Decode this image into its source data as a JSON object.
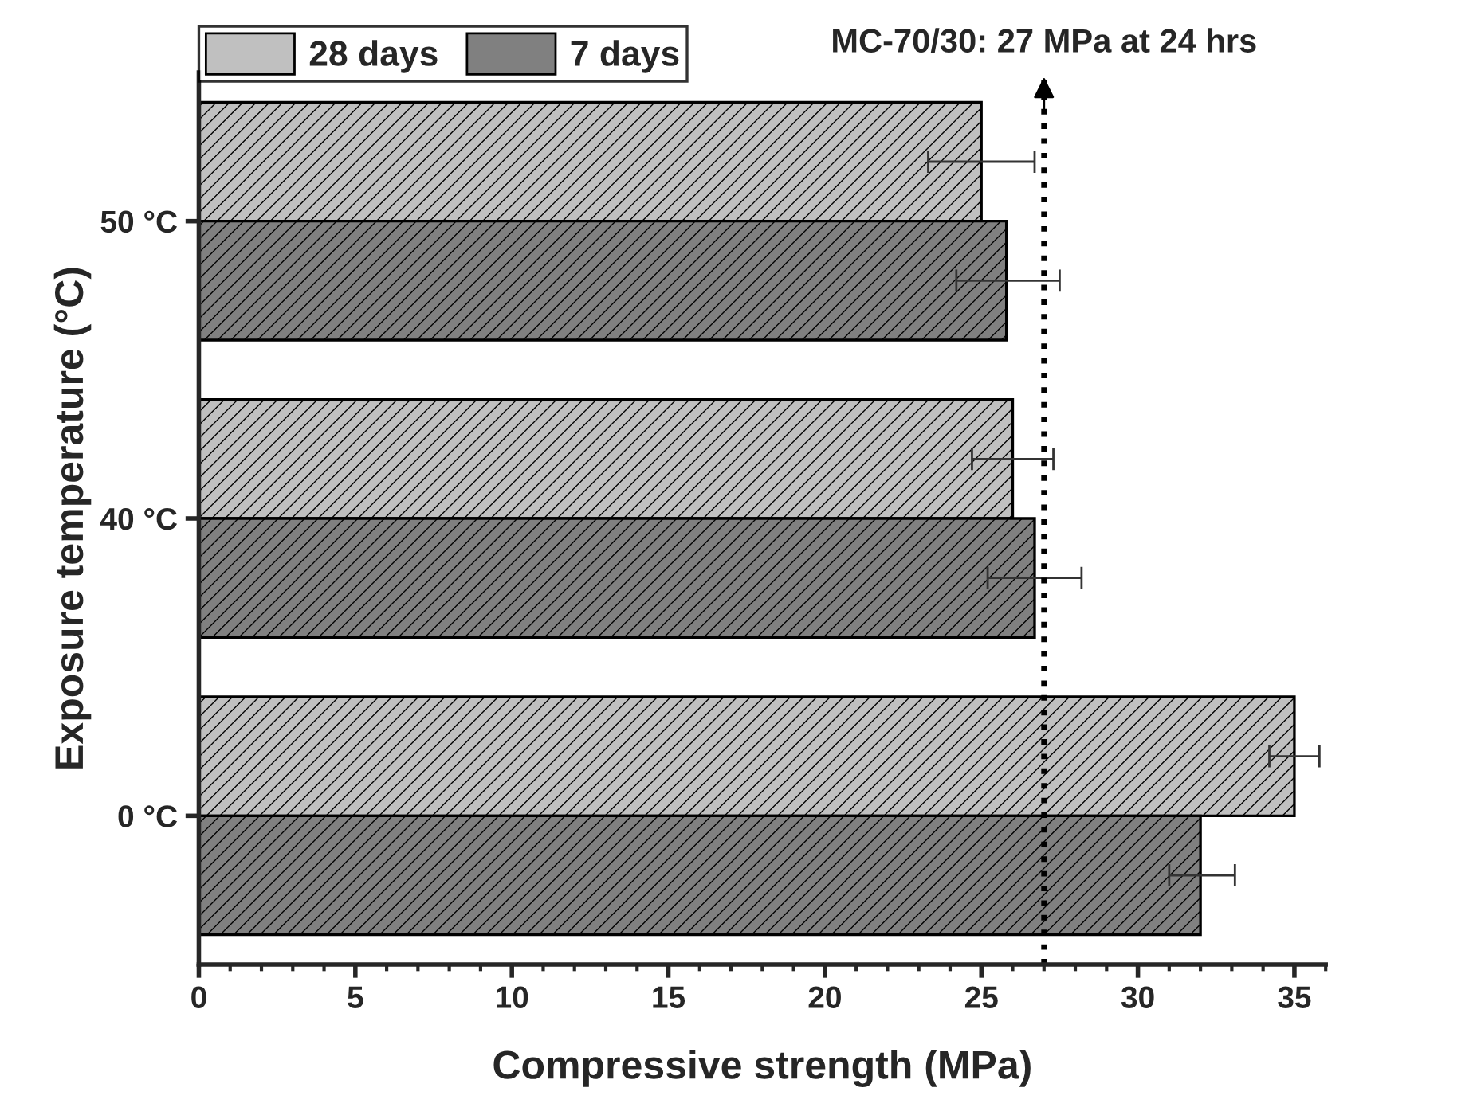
{
  "chart_data": {
    "type": "bar",
    "orientation": "horizontal",
    "xlabel": "Compressive strength (MPa)",
    "ylabel": "Exposure temperature (°C)",
    "categories": [
      "50 °C",
      "40 °C",
      "0 °C"
    ],
    "series": [
      {
        "name": "28 days",
        "color": "#c0c0c0",
        "values": [
          25.0,
          26.0,
          35.0
        ],
        "errors": [
          [
            23.3,
            26.7
          ],
          [
            24.7,
            27.3
          ],
          [
            34.2,
            35.8
          ]
        ]
      },
      {
        "name": "7 days",
        "color": "#808080",
        "values": [
          25.8,
          26.7,
          32.0
        ],
        "errors": [
          [
            24.2,
            27.5
          ],
          [
            25.2,
            28.2
          ],
          [
            31.0,
            33.1
          ]
        ]
      }
    ],
    "xlim": [
      0,
      36
    ],
    "xticks": [
      0,
      5,
      10,
      15,
      20,
      25,
      30,
      35
    ],
    "ref_lines": [
      {
        "axis": "x",
        "value": 27,
        "label": "MC-70/30: 27 MPa at 24 hrs",
        "line_style": "dotted"
      }
    ],
    "legend": "top left",
    "grid": false
  }
}
